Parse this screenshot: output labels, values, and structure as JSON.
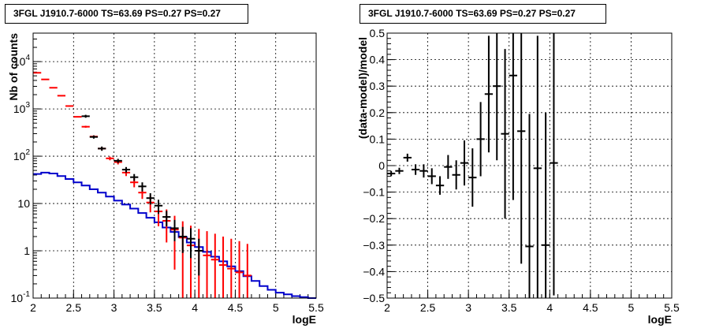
{
  "chart_data": [
    {
      "type": "line",
      "title": "3FGL J1910.7-6000 TS=63.69 PS=0.27 PS=0.27",
      "xlabel": "logE",
      "ylabel": "Nb of counts",
      "xlim": [
        2,
        5.5
      ],
      "ylim": [
        0.1,
        40000
      ],
      "log_y": true,
      "grid": true,
      "x_ticks": [
        "2",
        "2.5",
        "3",
        "3.5",
        "4",
        "4.5",
        "5",
        "5.5"
      ],
      "y_ticks": [
        {
          "value": 0.1,
          "base": "10",
          "exp": "-1",
          "text": ""
        },
        {
          "value": 1,
          "base": "",
          "exp": "",
          "text": "1"
        },
        {
          "value": 10,
          "base": "",
          "exp": "",
          "text": "10"
        },
        {
          "value": 100,
          "base": "10",
          "exp": "2",
          "text": ""
        },
        {
          "value": 1000,
          "base": "10",
          "exp": "3",
          "text": ""
        },
        {
          "value": 10000,
          "base": "10",
          "exp": "4",
          "text": ""
        }
      ],
      "series": [
        {
          "color": "#ff0000",
          "style": "errorbar",
          "x": [
            2.05,
            2.15,
            2.25,
            2.35,
            2.45,
            2.55,
            2.65,
            2.75,
            2.85,
            2.95,
            3.05,
            3.15,
            3.25,
            3.35,
            3.45,
            3.55,
            3.65,
            3.75,
            3.85,
            3.95,
            4.05,
            4.15,
            4.25,
            4.35,
            4.45,
            4.55,
            4.65
          ],
          "y": [
            5800,
            4200,
            2800,
            1900,
            1150,
            680,
            420,
            260,
            145,
            90,
            75,
            45,
            28,
            17,
            10.5,
            6.8,
            4.3,
            2.8,
            1.9,
            1.3,
            1.0,
            0.8,
            0.65,
            0.5,
            0.42,
            0.35,
            0.3
          ],
          "ylow": [
            5750,
            4150,
            2750,
            1850,
            1110,
            660,
            400,
            245,
            135,
            82,
            67,
            38,
            22,
            12.5,
            6.5,
            3.3,
            1.5,
            0.4,
            0.1,
            0.1,
            0.1,
            0.1,
            0.1,
            0.1,
            0.1,
            0.1,
            0.1
          ],
          "yhigh": [
            5850,
            4250,
            2850,
            1950,
            1190,
            700,
            440,
            275,
            155,
            98,
            83,
            52,
            34,
            22,
            14.5,
            10.5,
            7.5,
            5.5,
            4.2,
            3.4,
            2.9,
            2.6,
            2.3,
            2.0,
            1.8,
            1.6,
            1.4
          ]
        },
        {
          "color": "#000000",
          "style": "errorbar",
          "x": [
            2.65,
            2.75,
            2.85,
            3.05,
            3.15,
            3.25,
            3.35,
            3.45,
            3.55,
            3.65,
            3.75,
            3.85,
            3.95,
            4.05
          ],
          "y": [
            700,
            255,
            145,
            80,
            52,
            36,
            23,
            13,
            9,
            5.2,
            3,
            2,
            1.8,
            1
          ],
          "ylow": [
            650,
            235,
            130,
            72,
            45,
            30,
            18,
            9.5,
            6,
            3.3,
            1.6,
            0.9,
            0.7,
            0.3
          ],
          "yhigh": [
            750,
            275,
            160,
            88,
            59,
            42,
            28,
            16.5,
            12,
            7,
            4.5,
            3.2,
            3.0,
            1.8
          ]
        },
        {
          "color": "#0000cc",
          "style": "step",
          "x": [
            2.05,
            2.15,
            2.25,
            2.35,
            2.45,
            2.55,
            2.65,
            2.75,
            2.85,
            2.95,
            3.05,
            3.15,
            3.25,
            3.35,
            3.45,
            3.55,
            3.65,
            3.75,
            3.85,
            3.95,
            4.05,
            4.15,
            4.25,
            4.35,
            4.45,
            4.55,
            4.65,
            4.75,
            4.85,
            4.95,
            5.05,
            5.15,
            5.25,
            5.35,
            5.45
          ],
          "y": [
            42,
            45,
            43,
            38,
            33,
            28,
            24,
            20,
            17,
            14,
            11.5,
            9.5,
            7.8,
            6.3,
            5.0,
            4.0,
            3.1,
            2.5,
            1.95,
            1.5,
            1.2,
            0.95,
            0.75,
            0.6,
            0.47,
            0.37,
            0.29,
            0.23,
            0.18,
            0.15,
            0.13,
            0.12,
            0.11,
            0.105,
            0.1
          ]
        }
      ]
    },
    {
      "type": "scatter",
      "title": "3FGL J1910.7-6000 TS=63.69 PS=0.27 PS=0.27",
      "xlabel": "logE",
      "ylabel": "(data-model)/model",
      "xlim": [
        2,
        5.5
      ],
      "ylim": [
        -0.5,
        0.5
      ],
      "grid": true,
      "x_ticks": [
        "2",
        "2.5",
        "3",
        "3.5",
        "4",
        "4.5",
        "5",
        "5.5"
      ],
      "y_ticks": [
        "−0.5",
        "−0.4",
        "−0.3",
        "−0.2",
        "−0.1",
        "0",
        "0.1",
        "0.2",
        "0.3",
        "0.4",
        "0.5"
      ],
      "series": [
        {
          "color": "#000000",
          "style": "errorbar",
          "x": [
            2.05,
            2.15,
            2.25,
            2.35,
            2.45,
            2.55,
            2.65,
            2.75,
            2.85,
            2.95,
            3.05,
            3.15,
            3.25,
            3.35,
            3.45,
            3.55,
            3.65,
            3.75,
            3.85,
            3.95,
            4.05
          ],
          "y": [
            -0.03,
            -0.02,
            0.03,
            -0.015,
            -0.02,
            -0.04,
            -0.075,
            -0.005,
            -0.035,
            0.01,
            -0.045,
            0.1,
            0.27,
            0.3,
            0.12,
            0.34,
            0.13,
            -0.305,
            -0.01,
            -0.3,
            0.01
          ],
          "err": [
            0.01,
            0.012,
            0.015,
            0.02,
            0.025,
            0.03,
            0.035,
            0.045,
            0.055,
            0.085,
            0.11,
            0.14,
            0.22,
            0.28,
            0.32,
            0.47,
            0.5,
            0.5,
            0.5,
            0.5,
            0.5
          ]
        }
      ]
    }
  ]
}
